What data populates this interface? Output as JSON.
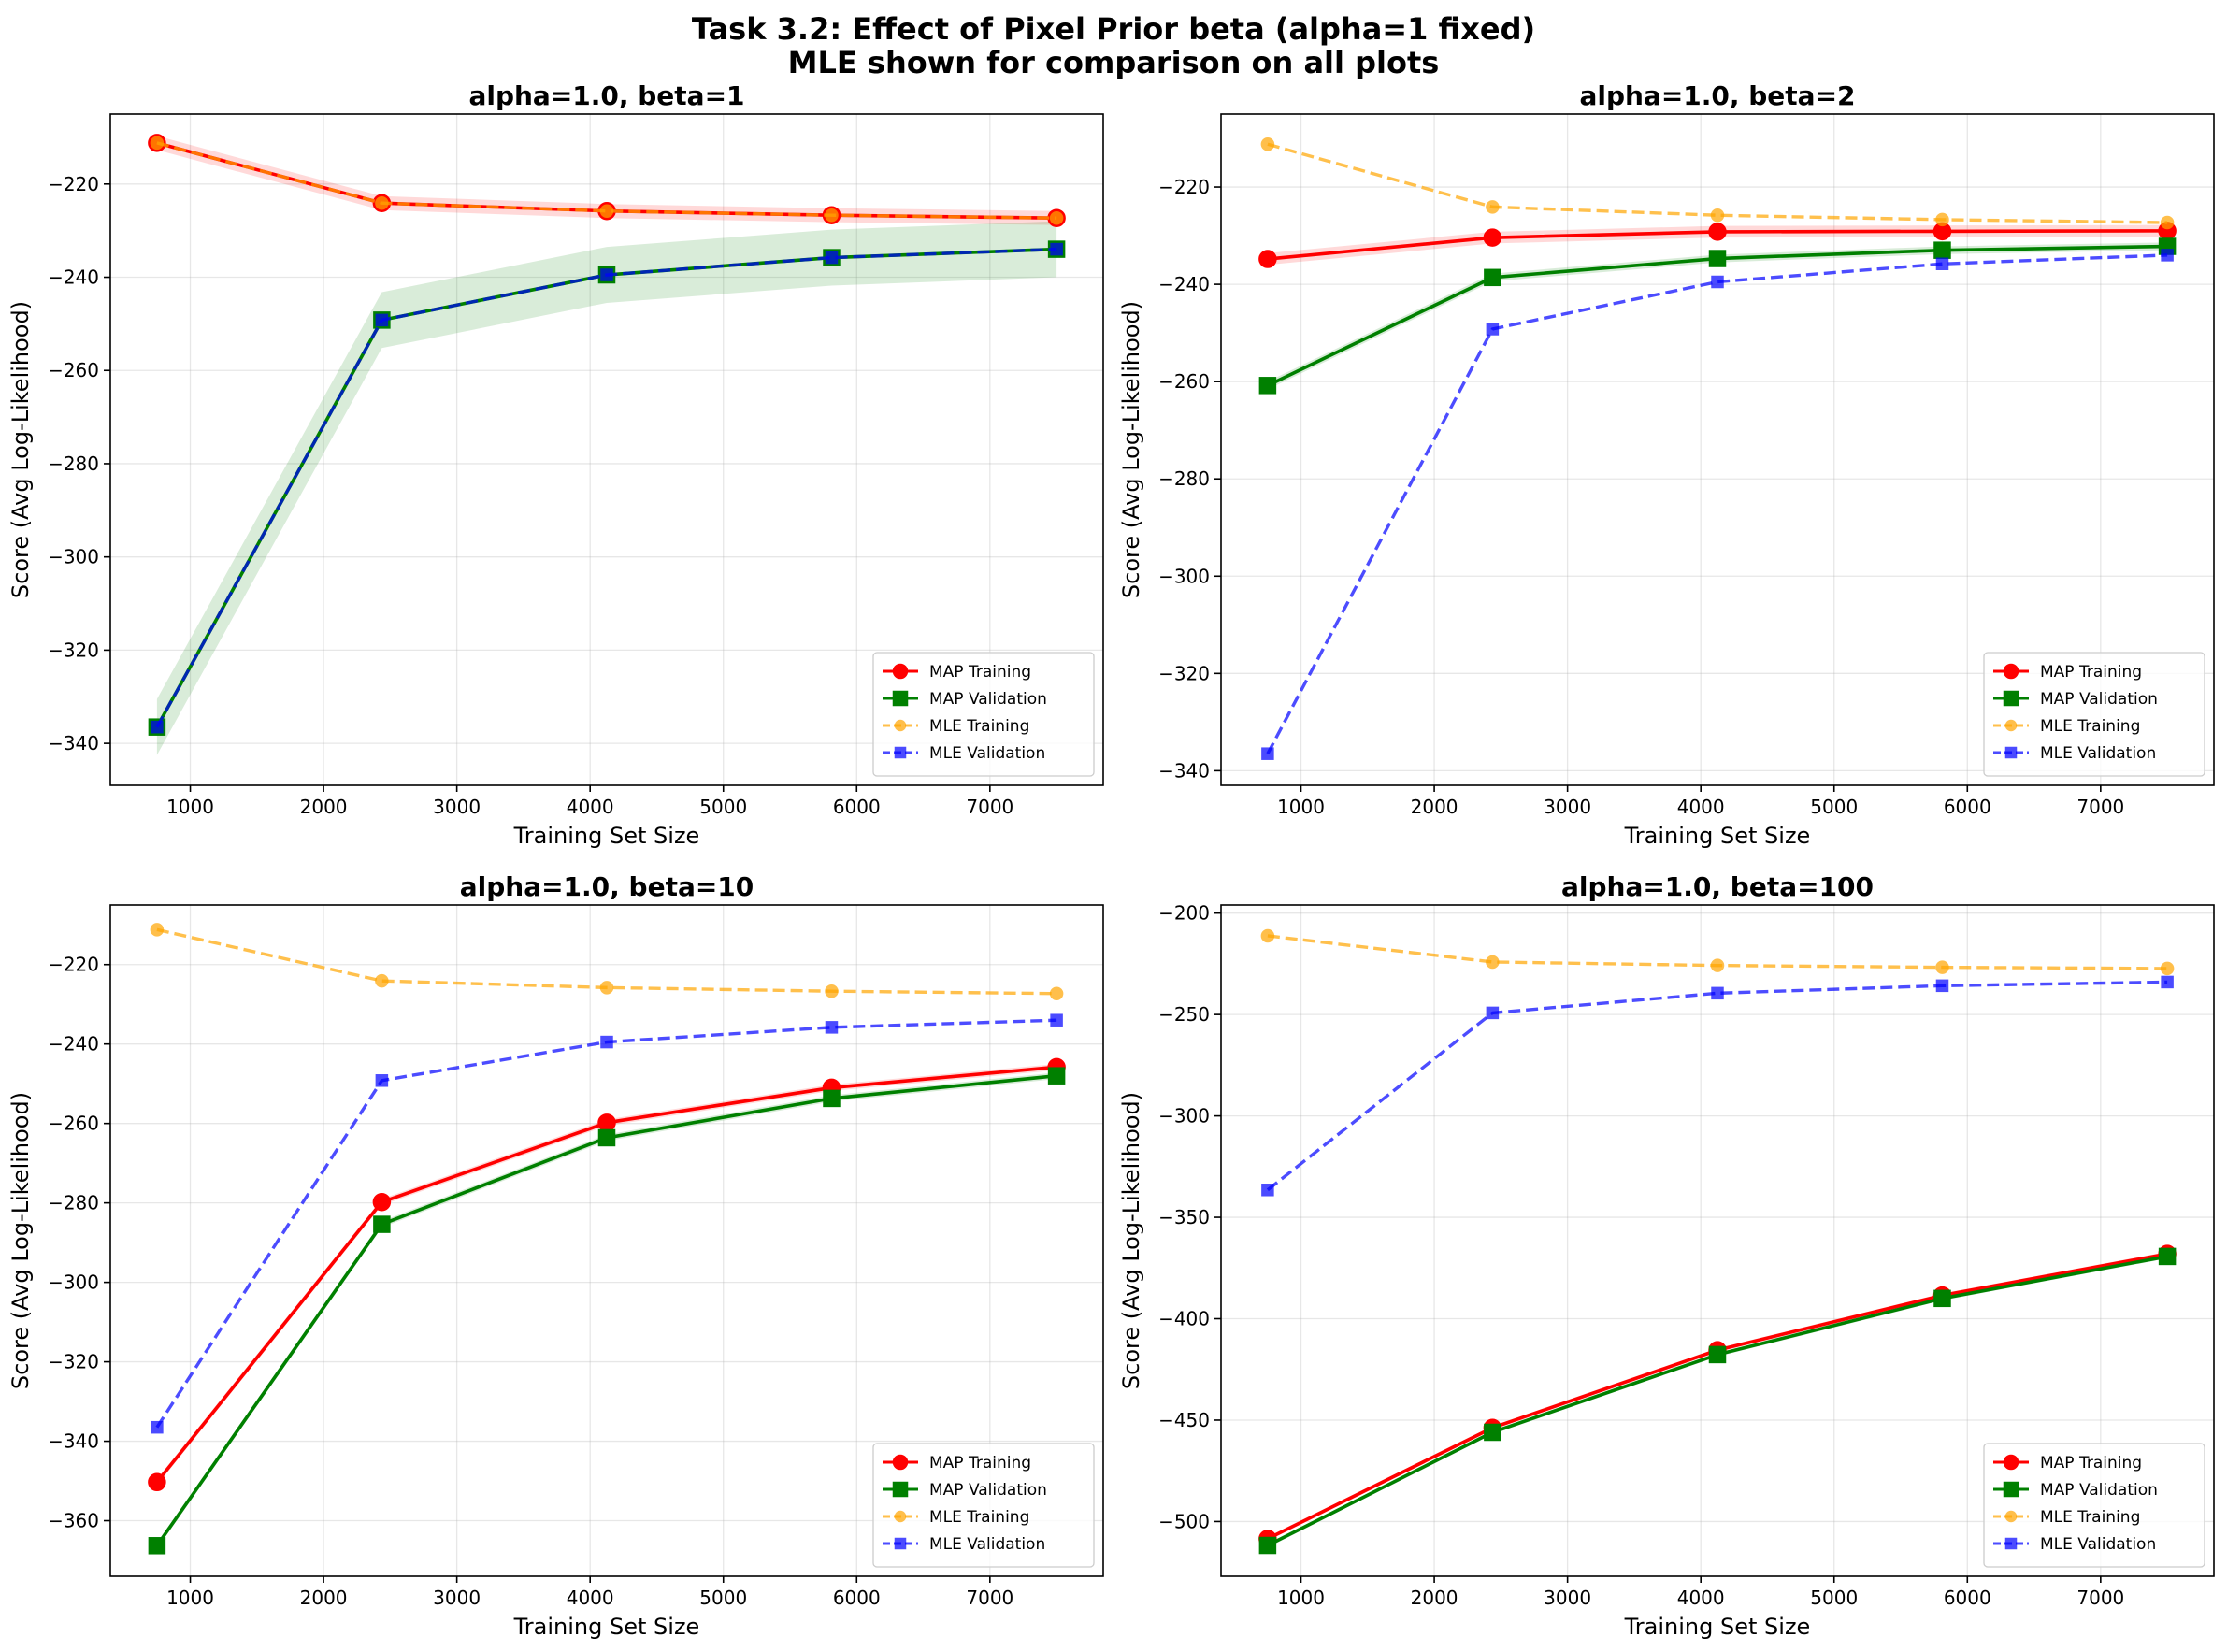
{
  "figure": {
    "title_line1": "Task 3.2: Effect of Pixel Prior beta (alpha=1 fixed)",
    "title_line2": "MLE shown for comparison on all plots"
  },
  "chart_data": [
    {
      "type": "line",
      "title": "alpha=1.0, beta=1",
      "xlabel": "Training Set Size",
      "ylabel": "Score (Avg Log-Likelihood)",
      "xlim": [
        400,
        7850
      ],
      "ylim": [
        -349,
        -205
      ],
      "xticks": [
        1000,
        2000,
        3000,
        4000,
        5000,
        6000,
        7000
      ],
      "yticks": [
        -340,
        -320,
        -300,
        -280,
        -260,
        -240,
        -220
      ],
      "grid": true,
      "legend_position": "lower right",
      "x": [
        750,
        2437,
        4125,
        5812,
        7500
      ],
      "series": [
        {
          "name": "MAP Training",
          "values": [
            -211.2,
            -224.1,
            -225.8,
            -226.7,
            -227.3
          ],
          "color": "#ff0000",
          "style": "solid",
          "marker": "circle",
          "band": 1.5
        },
        {
          "name": "MAP Validation",
          "values": [
            -336.5,
            -249.2,
            -239.5,
            -235.8,
            -234.0
          ],
          "color": "#008000",
          "style": "solid",
          "marker": "square",
          "band": 6
        },
        {
          "name": "MLE Training",
          "values": [
            -211.2,
            -224.1,
            -225.8,
            -226.7,
            -227.3
          ],
          "color": "#ffa500",
          "style": "dashed",
          "marker": "circle"
        },
        {
          "name": "MLE Validation",
          "values": [
            -336.5,
            -249.2,
            -239.5,
            -235.8,
            -234.0
          ],
          "color": "#0000ff",
          "style": "dashed",
          "marker": "square"
        }
      ]
    },
    {
      "type": "line",
      "title": "alpha=1.0, beta=2",
      "xlabel": "Training Set Size",
      "ylabel": "Score (Avg Log-Likelihood)",
      "xlim": [
        400,
        7850
      ],
      "ylim": [
        -343,
        -205
      ],
      "xticks": [
        1000,
        2000,
        3000,
        4000,
        5000,
        6000,
        7000
      ],
      "yticks": [
        -340,
        -320,
        -300,
        -280,
        -260,
        -240,
        -220
      ],
      "grid": true,
      "legend_position": "lower right",
      "x": [
        750,
        2437,
        4125,
        5812,
        7500
      ],
      "series": [
        {
          "name": "MAP Training",
          "values": [
            -234.8,
            -230.4,
            -229.2,
            -229.1,
            -229.0
          ],
          "color": "#ff0000",
          "style": "solid",
          "marker": "circle",
          "band": 1.2
        },
        {
          "name": "MAP Validation",
          "values": [
            -260.8,
            -238.6,
            -234.7,
            -233.0,
            -232.2
          ],
          "color": "#008000",
          "style": "solid",
          "marker": "square",
          "band": 0.8
        },
        {
          "name": "MLE Training",
          "values": [
            -211.2,
            -224.1,
            -225.8,
            -226.7,
            -227.3
          ],
          "color": "#ffa500",
          "style": "dashed",
          "marker": "circle"
        },
        {
          "name": "MLE Validation",
          "values": [
            -336.5,
            -249.2,
            -239.5,
            -235.8,
            -234.0
          ],
          "color": "#0000ff",
          "style": "dashed",
          "marker": "square"
        }
      ]
    },
    {
      "type": "line",
      "title": "alpha=1.0, beta=10",
      "xlabel": "Training Set Size",
      "ylabel": "Score (Avg Log-Likelihood)",
      "xlim": [
        400,
        7850
      ],
      "ylim": [
        -374,
        -205
      ],
      "xticks": [
        1000,
        2000,
        3000,
        4000,
        5000,
        6000,
        7000
      ],
      "yticks": [
        -360,
        -340,
        -320,
        -300,
        -280,
        -260,
        -240,
        -220
      ],
      "grid": true,
      "legend_position": "lower right",
      "x": [
        750,
        2437,
        4125,
        5812,
        7500
      ],
      "series": [
        {
          "name": "MAP Training",
          "values": [
            -350.3,
            -279.8,
            -259.8,
            -251.0,
            -245.8
          ],
          "color": "#ff0000",
          "style": "solid",
          "marker": "circle",
          "band": 0.8
        },
        {
          "name": "MAP Validation",
          "values": [
            -366.3,
            -285.4,
            -263.6,
            -253.7,
            -248.0
          ],
          "color": "#008000",
          "style": "solid",
          "marker": "square",
          "band": 0.8
        },
        {
          "name": "MLE Training",
          "values": [
            -211.2,
            -224.1,
            -225.8,
            -226.7,
            -227.3
          ],
          "color": "#ffa500",
          "style": "dashed",
          "marker": "circle"
        },
        {
          "name": "MLE Validation",
          "values": [
            -336.5,
            -249.2,
            -239.5,
            -235.8,
            -234.0
          ],
          "color": "#0000ff",
          "style": "dashed",
          "marker": "square"
        }
      ]
    },
    {
      "type": "line",
      "title": "alpha=1.0, beta=100",
      "xlabel": "Training Set Size",
      "ylabel": "Score (Avg Log-Likelihood)",
      "xlim": [
        400,
        7850
      ],
      "ylim": [
        -527,
        -196
      ],
      "xticks": [
        1000,
        2000,
        3000,
        4000,
        5000,
        6000,
        7000
      ],
      "yticks": [
        -500,
        -450,
        -400,
        -350,
        -300,
        -250,
        -200
      ],
      "grid": true,
      "legend_position": "lower right",
      "x": [
        750,
        2437,
        4125,
        5812,
        7500
      ],
      "series": [
        {
          "name": "MAP Training",
          "values": [
            -508.5,
            -453.8,
            -415.5,
            -388.5,
            -368.0
          ],
          "color": "#ff0000",
          "style": "solid",
          "marker": "circle",
          "band": 1
        },
        {
          "name": "MAP Validation",
          "values": [
            -511.8,
            -456.0,
            -417.7,
            -390.0,
            -369.3
          ],
          "color": "#008000",
          "style": "solid",
          "marker": "square",
          "band": 1
        },
        {
          "name": "MLE Training",
          "values": [
            -211.2,
            -224.1,
            -225.8,
            -226.7,
            -227.3
          ],
          "color": "#ffa500",
          "style": "dashed",
          "marker": "circle"
        },
        {
          "name": "MLE Validation",
          "values": [
            -336.5,
            -249.2,
            -239.5,
            -235.8,
            -234.0
          ],
          "color": "#0000ff",
          "style": "dashed",
          "marker": "square"
        }
      ]
    }
  ]
}
